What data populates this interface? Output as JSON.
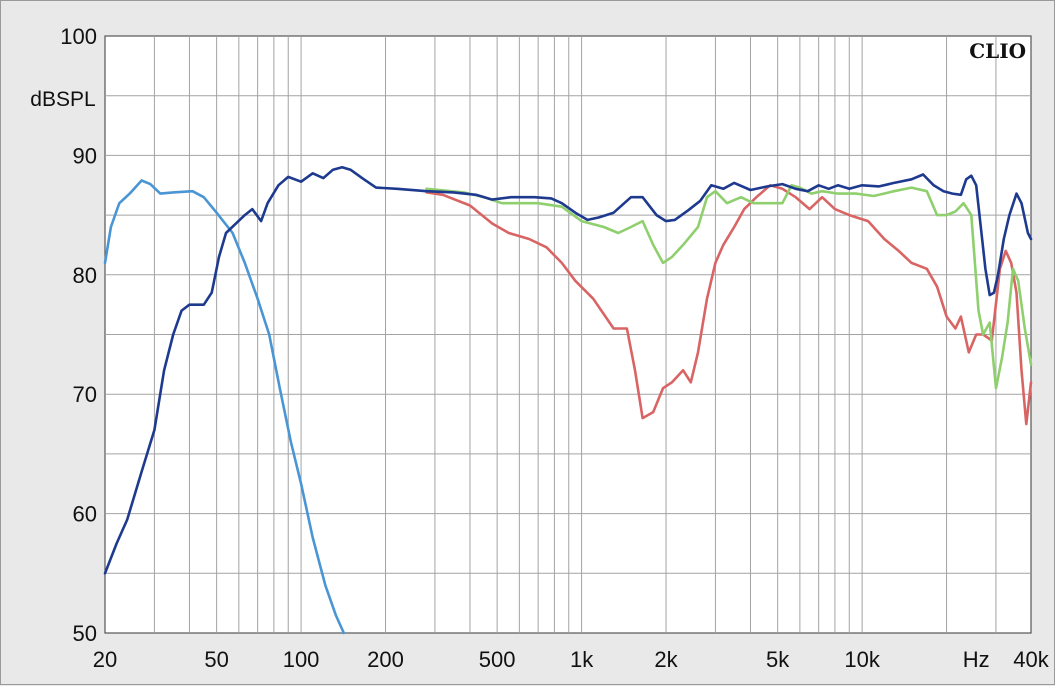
{
  "chart_data": {
    "type": "line",
    "xscale": "log",
    "xlim": [
      20,
      40000
    ],
    "ylim": [
      50,
      100
    ],
    "ylabel": "dBSPL",
    "x_unit_label": "Hz",
    "brand": "CLIO",
    "grid": true,
    "xticks": [
      {
        "value": 20,
        "label": "20"
      },
      {
        "value": 50,
        "label": "50"
      },
      {
        "value": 100,
        "label": "100"
      },
      {
        "value": 200,
        "label": "200"
      },
      {
        "value": 500,
        "label": "500"
      },
      {
        "value": 1000,
        "label": "1k"
      },
      {
        "value": 2000,
        "label": "2k"
      },
      {
        "value": 5000,
        "label": "5k"
      },
      {
        "value": 10000,
        "label": "10k"
      },
      {
        "value": 40000,
        "label": "40k"
      }
    ],
    "yticks": [
      {
        "value": 100,
        "label": "100"
      },
      {
        "value": 90,
        "label": "90"
      },
      {
        "value": 80,
        "label": "80"
      },
      {
        "value": 70,
        "label": "70"
      },
      {
        "value": 60,
        "label": "60"
      },
      {
        "value": 50,
        "label": "50"
      }
    ],
    "series": [
      {
        "color": "#d96464",
        "points": [
          [
            280,
            86.9
          ],
          [
            320,
            86.7
          ],
          [
            400,
            85.8
          ],
          [
            480,
            84.3
          ],
          [
            550,
            83.5
          ],
          [
            650,
            83.0
          ],
          [
            750,
            82.3
          ],
          [
            850,
            81.0
          ],
          [
            950,
            79.5
          ],
          [
            1100,
            78.0
          ],
          [
            1300,
            75.5
          ],
          [
            1450,
            75.5
          ],
          [
            1550,
            72.0
          ],
          [
            1650,
            68.0
          ],
          [
            1800,
            68.5
          ],
          [
            1950,
            70.5
          ],
          [
            2100,
            71.0
          ],
          [
            2300,
            72.0
          ],
          [
            2450,
            71.0
          ],
          [
            2600,
            73.5
          ],
          [
            2800,
            78.0
          ],
          [
            3000,
            81.0
          ],
          [
            3200,
            82.5
          ],
          [
            3500,
            84.0
          ],
          [
            3800,
            85.5
          ],
          [
            4200,
            86.5
          ],
          [
            4700,
            87.5
          ],
          [
            5200,
            87.2
          ],
          [
            5800,
            86.5
          ],
          [
            6500,
            85.5
          ],
          [
            7200,
            86.5
          ],
          [
            8000,
            85.5
          ],
          [
            9000,
            85.0
          ],
          [
            10500,
            84.5
          ],
          [
            12000,
            83.0
          ],
          [
            13500,
            82.0
          ],
          [
            15000,
            81.0
          ],
          [
            17000,
            80.5
          ],
          [
            18500,
            79.0
          ],
          [
            20000,
            76.5
          ],
          [
            21500,
            75.5
          ],
          [
            22500,
            76.5
          ],
          [
            24000,
            73.5
          ],
          [
            25500,
            75.0
          ],
          [
            27000,
            75.0
          ],
          [
            29000,
            74.5
          ],
          [
            31000,
            80.5
          ],
          [
            32500,
            82.0
          ],
          [
            34000,
            81.0
          ],
          [
            35500,
            78.5
          ],
          [
            37000,
            72.0
          ],
          [
            38500,
            67.5
          ],
          [
            40000,
            71.0
          ]
        ]
      },
      {
        "color": "#8fcf6e",
        "points": [
          [
            280,
            87.2
          ],
          [
            380,
            86.9
          ],
          [
            450,
            86.5
          ],
          [
            520,
            86.0
          ],
          [
            700,
            86.0
          ],
          [
            850,
            85.7
          ],
          [
            1000,
            84.5
          ],
          [
            1200,
            84.0
          ],
          [
            1350,
            83.5
          ],
          [
            1500,
            84.0
          ],
          [
            1650,
            84.5
          ],
          [
            1800,
            82.5
          ],
          [
            1950,
            81.0
          ],
          [
            2100,
            81.5
          ],
          [
            2300,
            82.5
          ],
          [
            2600,
            84.0
          ],
          [
            2800,
            86.5
          ],
          [
            3000,
            87.0
          ],
          [
            3300,
            86.0
          ],
          [
            3700,
            86.5
          ],
          [
            4100,
            86.0
          ],
          [
            4600,
            86.0
          ],
          [
            5200,
            86.0
          ],
          [
            5600,
            87.5
          ],
          [
            6000,
            87.3
          ],
          [
            6600,
            86.8
          ],
          [
            7200,
            87.0
          ],
          [
            8200,
            86.8
          ],
          [
            9500,
            86.8
          ],
          [
            11000,
            86.6
          ],
          [
            13000,
            87.0
          ],
          [
            15000,
            87.3
          ],
          [
            17000,
            87.0
          ],
          [
            18500,
            85.0
          ],
          [
            20000,
            85.0
          ],
          [
            21500,
            85.3
          ],
          [
            23000,
            86.0
          ],
          [
            24500,
            85.0
          ],
          [
            26000,
            77.0
          ],
          [
            27000,
            75.0
          ],
          [
            28500,
            76.0
          ],
          [
            30000,
            70.5
          ],
          [
            31500,
            73.0
          ],
          [
            33000,
            76.0
          ],
          [
            34500,
            80.5
          ],
          [
            36000,
            79.5
          ],
          [
            38000,
            75.5
          ],
          [
            40000,
            72.5
          ]
        ]
      },
      {
        "color": "#4a95d3",
        "points": [
          [
            20,
            81.0
          ],
          [
            21,
            84.0
          ],
          [
            22.5,
            86.0
          ],
          [
            24.5,
            86.8
          ],
          [
            27,
            87.9
          ],
          [
            29,
            87.6
          ],
          [
            31.5,
            86.8
          ],
          [
            35,
            86.9
          ],
          [
            41,
            87.0
          ],
          [
            45,
            86.5
          ],
          [
            50,
            85.2
          ],
          [
            57,
            83.5
          ],
          [
            63,
            81.0
          ],
          [
            70,
            78.0
          ],
          [
            77,
            75.0
          ],
          [
            84,
            70.5
          ],
          [
            92,
            66.0
          ],
          [
            100,
            62.5
          ],
          [
            110,
            58.0
          ],
          [
            122,
            54.0
          ],
          [
            133,
            51.5
          ],
          [
            142,
            50.0
          ]
        ]
      },
      {
        "color": "#1e3a8f",
        "points": [
          [
            20,
            55.0
          ],
          [
            22,
            57.5
          ],
          [
            24,
            59.5
          ],
          [
            27,
            63.5
          ],
          [
            30,
            67.0
          ],
          [
            32.5,
            72.0
          ],
          [
            35,
            75.0
          ],
          [
            37.5,
            77.0
          ],
          [
            40,
            77.5
          ],
          [
            45,
            77.5
          ],
          [
            48,
            78.5
          ],
          [
            51,
            81.5
          ],
          [
            54,
            83.5
          ],
          [
            58,
            84.2
          ],
          [
            63,
            85.0
          ],
          [
            67,
            85.5
          ],
          [
            72,
            84.5
          ],
          [
            76,
            86.0
          ],
          [
            83,
            87.5
          ],
          [
            90,
            88.2
          ],
          [
            100,
            87.8
          ],
          [
            110,
            88.5
          ],
          [
            120,
            88.1
          ],
          [
            130,
            88.8
          ],
          [
            140,
            89.0
          ],
          [
            150,
            88.8
          ],
          [
            165,
            88.1
          ],
          [
            185,
            87.3
          ],
          [
            220,
            87.2
          ],
          [
            280,
            87.0
          ],
          [
            350,
            86.9
          ],
          [
            420,
            86.7
          ],
          [
            480,
            86.3
          ],
          [
            560,
            86.5
          ],
          [
            680,
            86.5
          ],
          [
            780,
            86.4
          ],
          [
            850,
            86.0
          ],
          [
            950,
            85.2
          ],
          [
            1050,
            84.6
          ],
          [
            1150,
            84.8
          ],
          [
            1300,
            85.2
          ],
          [
            1500,
            86.5
          ],
          [
            1650,
            86.5
          ],
          [
            1850,
            85.0
          ],
          [
            2000,
            84.5
          ],
          [
            2150,
            84.6
          ],
          [
            2400,
            85.4
          ],
          [
            2650,
            86.2
          ],
          [
            2900,
            87.5
          ],
          [
            3200,
            87.2
          ],
          [
            3500,
            87.7
          ],
          [
            4000,
            87.1
          ],
          [
            4600,
            87.4
          ],
          [
            5200,
            87.6
          ],
          [
            5800,
            87.2
          ],
          [
            6400,
            87.0
          ],
          [
            7000,
            87.5
          ],
          [
            7600,
            87.2
          ],
          [
            8200,
            87.5
          ],
          [
            9000,
            87.2
          ],
          [
            10000,
            87.5
          ],
          [
            11500,
            87.4
          ],
          [
            13000,
            87.7
          ],
          [
            15000,
            88.0
          ],
          [
            16500,
            88.4
          ],
          [
            18000,
            87.5
          ],
          [
            19500,
            87.0
          ],
          [
            21000,
            86.8
          ],
          [
            22500,
            86.7
          ],
          [
            23500,
            88.0
          ],
          [
            24500,
            88.3
          ],
          [
            25500,
            87.5
          ],
          [
            26500,
            84.0
          ],
          [
            27500,
            80.5
          ],
          [
            28500,
            78.3
          ],
          [
            29500,
            78.5
          ],
          [
            30500,
            80.0
          ],
          [
            32000,
            83.0
          ],
          [
            33500,
            85.0
          ],
          [
            35500,
            86.8
          ],
          [
            37000,
            86.0
          ],
          [
            39000,
            83.5
          ],
          [
            40000,
            83.0
          ]
        ]
      }
    ]
  }
}
